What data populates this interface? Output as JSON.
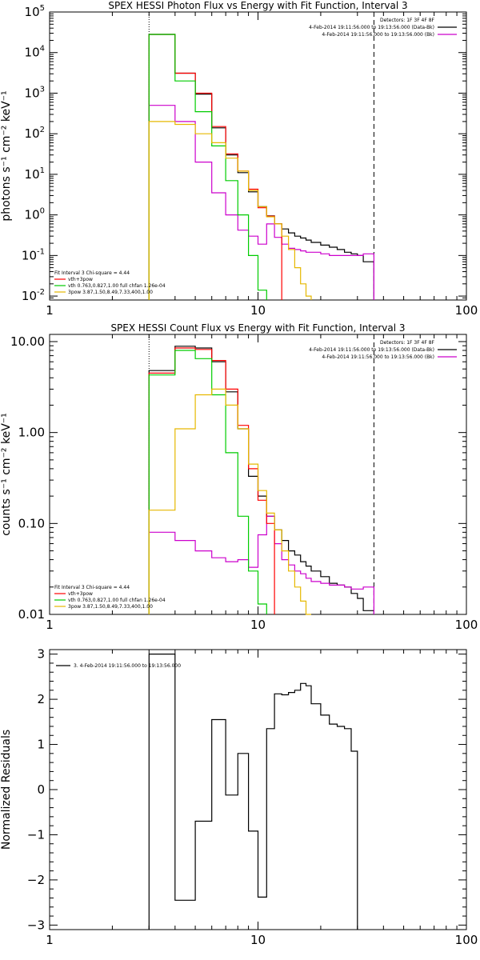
{
  "chart_data": [
    {
      "type": "line",
      "title": "SPEX HESSI Photon Flux vs Energy with Fit Function, Interval 3",
      "ylabel": "photons s⁻¹ cm⁻² keV⁻¹",
      "xlabel": "",
      "xscale": "log",
      "yscale": "log",
      "xlim": [
        1,
        100
      ],
      "ylim": [
        0.008,
        100000
      ],
      "xticks": [
        {
          "v": 1,
          "label": "1"
        },
        {
          "v": 10,
          "label": "10"
        },
        {
          "v": 100,
          "label": "100"
        }
      ],
      "yticks": [
        {
          "v": 0.01,
          "base": "10",
          "exp": "-2"
        },
        {
          "v": 0.1,
          "base": "10",
          "exp": "-1"
        },
        {
          "v": 1,
          "base": "10",
          "exp": "0"
        },
        {
          "v": 10,
          "base": "10",
          "exp": "1"
        },
        {
          "v": 100,
          "base": "10",
          "exp": "2"
        },
        {
          "v": 1000,
          "base": "10",
          "exp": "3"
        },
        {
          "v": 10000,
          "base": "10",
          "exp": "4"
        },
        {
          "v": 100000,
          "base": "10",
          "exp": "5"
        }
      ],
      "vlines": [
        {
          "x": 3.0,
          "style": "dotted"
        },
        {
          "x": 36,
          "style": "dashed"
        }
      ],
      "edges": [
        3.0,
        4.0,
        5.0,
        6.0,
        7.0,
        8.0,
        9.0,
        10.0,
        11.0,
        12.0,
        13.0,
        14.0,
        15.0,
        16.0,
        17.0,
        18.0,
        20.0,
        22.0,
        24.0,
        26.0,
        28.0,
        30.0,
        32.0,
        36.0
      ],
      "legend_top": {
        "position": "top-right",
        "lines": [
          "Detectors: 1F 3F 4F 8F",
          "4-Feb-2014 19:11:56.000 to 19:13:56.000 (Data-Bk)",
          "4-Feb-2014 19:11:56.000 to 19:13:56.000 (Bk)"
        ],
        "colors": [
          "",
          "#000000",
          "#cc00cc"
        ]
      },
      "legend_bottom": {
        "position": "bottom-left",
        "header": "Fit Interval 3   Chi-square = 4.44",
        "entries": [
          {
            "label": "vth+3pow",
            "color": "#ff0000"
          },
          {
            "label": "vth 0.763,0.827,1.00  full chfan 1.26e-04",
            "color": "#00cc00"
          },
          {
            "label": "3pow 3.87,1.50,8.49,7.33,400,1.00",
            "color": "#e6b800"
          }
        ]
      },
      "series": [
        {
          "color": "#000000",
          "values": [
            28000,
            3100,
            950,
            140,
            30,
            11,
            3.7,
            1.6,
            0.95,
            0.6,
            0.45,
            0.36,
            0.3,
            0.27,
            0.24,
            0.21,
            0.18,
            0.16,
            0.14,
            0.12,
            0.11,
            0.1,
            0.07
          ]
        },
        {
          "color": "#cc00cc",
          "values": [
            500,
            200,
            20,
            3.5,
            1.0,
            0.42,
            0.3,
            0.19,
            0.6,
            0.28,
            0.19,
            0.15,
            0.14,
            0.13,
            0.12,
            0.12,
            0.11,
            0.1,
            0.1,
            0.1,
            0.1,
            0.1,
            0.11
          ]
        },
        {
          "color": "#ff0000",
          "values": [
            28000,
            3100,
            1000,
            150,
            32,
            12,
            4.3,
            1.5,
            0.93,
            0.6
          ]
        },
        {
          "color": "#00cc00",
          "values": [
            28000,
            2000,
            350,
            50,
            7,
            1.0,
            0.1,
            0.014
          ]
        },
        {
          "color": "#e6b800",
          "values": [
            200,
            170,
            100,
            60,
            25,
            12,
            4.0,
            1.6,
            0.9,
            0.6,
            0.3,
            0.14,
            0.05,
            0.02,
            0.01
          ]
        }
      ]
    },
    {
      "type": "line",
      "title": "SPEX HESSI Count Flux vs Energy with Fit Function, Interval 3",
      "ylabel": "counts s⁻¹ cm⁻² keV⁻¹",
      "xlabel": "",
      "xscale": "log",
      "yscale": "log",
      "xlim": [
        1,
        100
      ],
      "ylim": [
        0.01,
        12
      ],
      "xticks": [
        {
          "v": 1,
          "label": "1"
        },
        {
          "v": 10,
          "label": "10"
        },
        {
          "v": 100,
          "label": "100"
        }
      ],
      "yticks": [
        {
          "v": 0.01,
          "label": "0.01"
        },
        {
          "v": 0.1,
          "label": "0.10"
        },
        {
          "v": 1,
          "label": "1.00"
        },
        {
          "v": 10,
          "label": "10.00"
        }
      ],
      "vlines": [
        {
          "x": 3.0,
          "style": "dotted"
        },
        {
          "x": 36,
          "style": "dashed"
        }
      ],
      "edges": [
        3.0,
        4.0,
        5.0,
        6.0,
        7.0,
        8.0,
        9.0,
        10.0,
        11.0,
        12.0,
        13.0,
        14.0,
        15.0,
        16.0,
        17.0,
        18.0,
        20.0,
        22.0,
        24.0,
        26.0,
        28.0,
        30.0,
        32.0,
        36.0
      ],
      "legend_top": {
        "position": "top-right",
        "lines": [
          "Detectors: 1F 3F 4F 8F",
          "4-Feb-2014 19:11:56.000 to 19:13:56.000 (Data-Bk)",
          "4-Feb-2014 19:11:56.000 to 19:13:56.000 (Bk)"
        ],
        "colors": [
          "",
          "#000000",
          "#cc00cc"
        ]
      },
      "legend_bottom": {
        "position": "bottom-left",
        "header": "Fit Interval 3   Chi-square = 4.44",
        "entries": [
          {
            "label": "vth+3pow",
            "color": "#ff0000"
          },
          {
            "label": "vth 0.763,0.827,1.00  full chfan 1.26e-04",
            "color": "#00cc00"
          },
          {
            "label": "3pow 3.87,1.50,8.49,7.33,400,1.00",
            "color": "#e6b800"
          }
        ]
      },
      "series": [
        {
          "color": "#000000",
          "values": [
            4.8,
            8.9,
            8.5,
            6.0,
            2.8,
            1.1,
            0.33,
            0.2,
            0.12,
            0.085,
            0.065,
            0.05,
            0.045,
            0.038,
            0.034,
            0.03,
            0.026,
            0.022,
            0.021,
            0.02,
            0.017,
            0.015,
            0.011
          ]
        },
        {
          "color": "#cc00cc",
          "values": [
            0.08,
            0.065,
            0.05,
            0.042,
            0.038,
            0.04,
            0.033,
            0.075,
            0.12,
            0.06,
            0.04,
            0.035,
            0.03,
            0.028,
            0.025,
            0.023,
            0.022,
            0.021,
            0.021,
            0.02,
            0.019,
            0.019,
            0.02
          ]
        },
        {
          "color": "#ff0000",
          "values": [
            4.5,
            8.5,
            8.2,
            6.2,
            3.0,
            1.2,
            0.4,
            0.18,
            0.1
          ]
        },
        {
          "color": "#00cc00",
          "values": [
            4.3,
            8.0,
            6.5,
            2.6,
            0.6,
            0.12,
            0.03,
            0.013
          ]
        },
        {
          "color": "#e6b800",
          "values": [
            0.14,
            1.1,
            2.6,
            3.0,
            2.0,
            1.1,
            0.45,
            0.23,
            0.13,
            0.085,
            0.05,
            0.03,
            0.02,
            0.014,
            0.01
          ]
        }
      ]
    },
    {
      "type": "line",
      "title": "",
      "ylabel": "Normalized Residuals",
      "xlabel": "",
      "xscale": "log",
      "yscale": "linear",
      "xlim": [
        1,
        100
      ],
      "ylim": [
        -3.1,
        3.1
      ],
      "xticks": [
        {
          "v": 1,
          "label": "1"
        },
        {
          "v": 10,
          "label": "10"
        },
        {
          "v": 100,
          "label": "100"
        }
      ],
      "yticks": [
        {
          "v": -3,
          "label": "−3"
        },
        {
          "v": -2,
          "label": "−2"
        },
        {
          "v": -1,
          "label": "−1"
        },
        {
          "v": 0,
          "label": "0"
        },
        {
          "v": 1,
          "label": "1"
        },
        {
          "v": 2,
          "label": "2"
        },
        {
          "v": 3,
          "label": "3"
        }
      ],
      "vlines": [],
      "edges": [
        3.0,
        4.0,
        5.0,
        6.0,
        7.0,
        8.0,
        9.0,
        10.0,
        11.0,
        12.0,
        13.0,
        14.0,
        15.0,
        16.0,
        17.0,
        18.0,
        20.0,
        22.0,
        24.0,
        26.0,
        28.0,
        30.0,
        32.0,
        36.0
      ],
      "legend_top": {
        "position": "top-left",
        "lines": [
          "3.  4-Feb-2014 19:11:56.000 to 19:13:56.000"
        ],
        "colors": [
          "#000000"
        ]
      },
      "legend_bottom": null,
      "series": [
        {
          "color": "#000000",
          "values": [
            3.0,
            -2.45,
            -0.7,
            1.55,
            -0.12,
            0.8,
            -0.92,
            -2.38,
            1.35,
            2.12,
            2.1,
            2.15,
            2.2,
            2.35,
            2.3,
            1.9,
            1.65,
            1.45,
            1.4,
            1.35,
            0.85
          ]
        }
      ]
    }
  ]
}
